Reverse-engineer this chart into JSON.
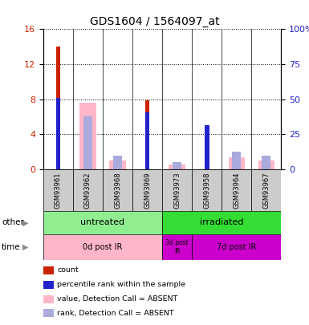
{
  "title": "GDS1604 / 1564097_at",
  "samples": [
    "GSM93961",
    "GSM93962",
    "GSM93968",
    "GSM93969",
    "GSM93973",
    "GSM93958",
    "GSM93964",
    "GSM93967"
  ],
  "count_values": [
    14.0,
    0,
    0,
    7.9,
    0,
    4.0,
    0,
    0
  ],
  "percentile_values": [
    8.1,
    0,
    0,
    6.5,
    0,
    5.0,
    0,
    0
  ],
  "absent_value": [
    0,
    7.6,
    1.0,
    0,
    0.5,
    0,
    1.3,
    1.0
  ],
  "absent_rank": [
    0,
    6.0,
    1.5,
    0,
    0.8,
    0,
    2.0,
    1.5
  ],
  "ylim_left": [
    0,
    16
  ],
  "ylim_right": [
    0,
    100
  ],
  "yticks_left": [
    0,
    4,
    8,
    12,
    16
  ],
  "yticks_right": [
    0,
    25,
    50,
    75,
    100
  ],
  "ytick_labels_right": [
    "0",
    "25",
    "50",
    "75",
    "100%"
  ],
  "other_groups": [
    {
      "label": "untreated",
      "start": 0,
      "end": 4,
      "color": "#90EE90"
    },
    {
      "label": "irradiated",
      "start": 4,
      "end": 8,
      "color": "#33DD33"
    }
  ],
  "time_groups": [
    {
      "label": "0d post IR",
      "start": 0,
      "end": 4,
      "color": "#FFB6C8"
    },
    {
      "label": "3d post\nIR",
      "start": 4,
      "end": 5,
      "color": "#CC00CC"
    },
    {
      "label": "7d post IR",
      "start": 5,
      "end": 8,
      "color": "#CC00CC"
    }
  ],
  "count_color": "#CC2200",
  "percentile_color": "#2222CC",
  "absent_value_color": "#FFB6C8",
  "absent_rank_color": "#AAAADD",
  "bar_width": 0.55,
  "ylabel_left_color": "#CC2200",
  "ylabel_right_color": "#2222CC",
  "row_bg_color": "#CCCCCC",
  "legend_items": [
    {
      "color": "#CC2200",
      "label": "count"
    },
    {
      "color": "#2222CC",
      "label": "percentile rank within the sample"
    },
    {
      "color": "#FFB6C8",
      "label": "value, Detection Call = ABSENT"
    },
    {
      "color": "#AAAADD",
      "label": "rank, Detection Call = ABSENT"
    }
  ]
}
